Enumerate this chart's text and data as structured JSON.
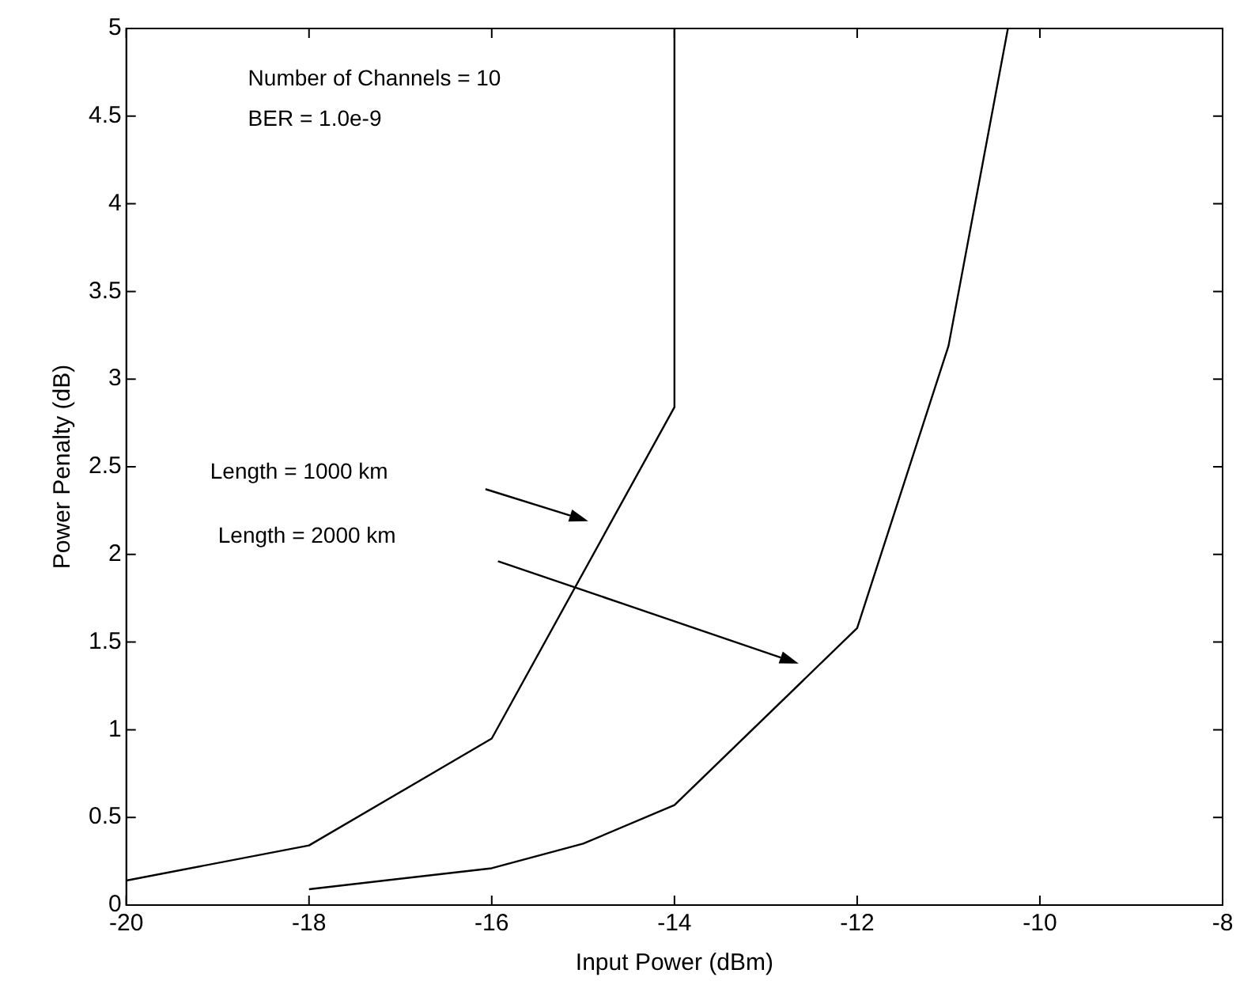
{
  "chart_data": {
    "type": "line",
    "xlabel": "Input Power (dBm)",
    "ylabel": "Power Penalty (dB)",
    "xlim": [
      -20,
      -8
    ],
    "xticks": [
      -20,
      -18,
      -16,
      -14,
      -12,
      -10,
      -8
    ],
    "ylim": [
      0,
      5
    ],
    "yticks": [
      0,
      0.5,
      1,
      1.5,
      2,
      2.5,
      3,
      3.5,
      4,
      4.5,
      5
    ],
    "grid": false,
    "legend": false,
    "marker": "none",
    "line_style": "solid",
    "series": [
      {
        "color": "#000000",
        "x": [
          -20,
          -18,
          -16,
          -14,
          -14
        ],
        "values": [
          0.14,
          0.34,
          0.95,
          2.84,
          5
        ]
      },
      {
        "color": "#000000",
        "x": [
          -18,
          -16,
          -15,
          -14,
          -12,
          -11,
          -10.35
        ],
        "values": [
          0.09,
          0.21,
          0.35,
          0.57,
          1.58,
          3.19,
          5
        ]
      }
    ],
    "annotations": [
      "Number of Channels = 10",
      "BER = 1.0e-9",
      "Length = 1000 km",
      "Length = 2000 km"
    ]
  }
}
